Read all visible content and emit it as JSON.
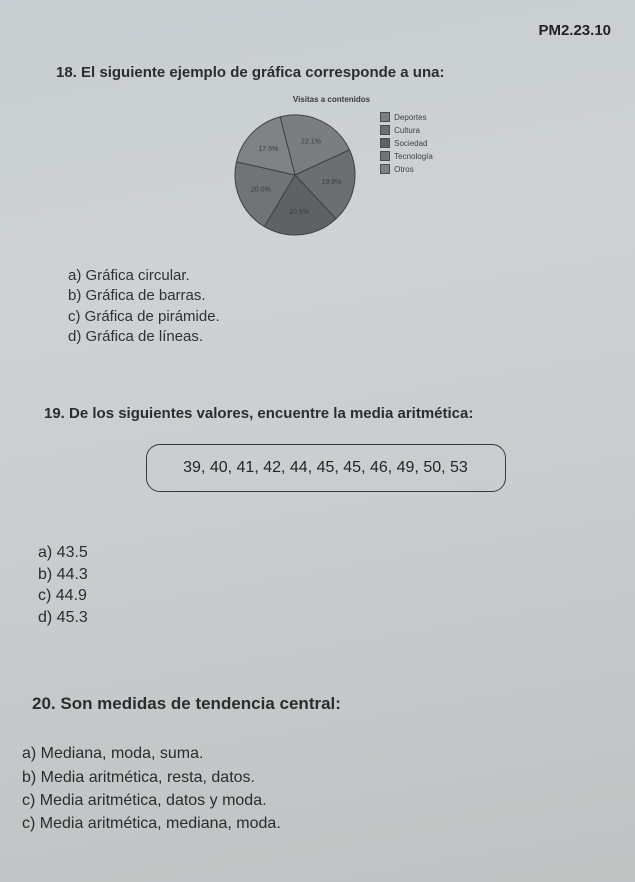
{
  "header_code": "PM2.23.10",
  "q18": {
    "title": "18. El siguiente ejemplo de gráfica corresponde a una:",
    "chart": {
      "title": "Visitas a contenidos",
      "type": "pie",
      "slices": [
        {
          "label": "Deportes",
          "value": 22.1,
          "color": "#7b7e80"
        },
        {
          "label": "Cultura",
          "value": 19.9,
          "color": "#6c6f71"
        },
        {
          "label": "Sociedad",
          "value": 20.5,
          "color": "#5f6264"
        },
        {
          "label": "Tecnología",
          "value": 20.0,
          "color": "#717476"
        },
        {
          "label": "Otros",
          "value": 17.5,
          "color": "#808385"
        }
      ],
      "radius": 60,
      "label_fontsize": 7,
      "label_color": "#3a3c3d",
      "stroke_color": "#3f4142",
      "stroke_width": 1,
      "background": "transparent"
    },
    "answers": [
      "a) Gráfica circular.",
      "b) Gráfica de barras.",
      "c) Gráfica de pirámide.",
      "d) Gráfica de líneas."
    ]
  },
  "q19": {
    "title": "19. De los siguientes valores, encuentre la media aritmética:",
    "values_text": "39, 40, 41, 42, 44, 45, 45, 46, 49, 50, 53",
    "answers": [
      "a) 43.5",
      "b) 44.3",
      "c) 44.9",
      "d) 45.3"
    ]
  },
  "q20": {
    "title": "20. Son medidas de tendencia central:",
    "answers": [
      "a) Mediana, moda, suma.",
      "b) Media aritmética, resta, datos.",
      "c) Media aritmética, datos y moda.",
      "c) Media aritmética, mediana, moda."
    ]
  }
}
